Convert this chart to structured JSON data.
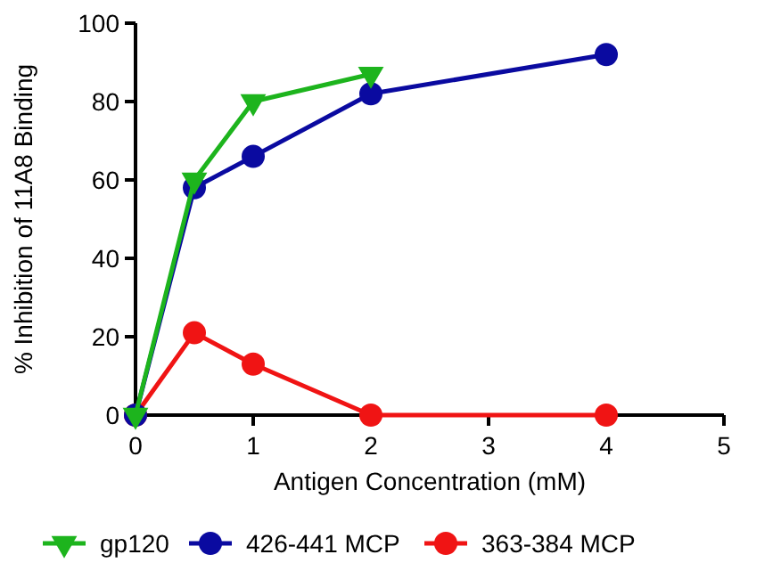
{
  "chart_data": {
    "type": "line",
    "xlabel": "Antigen Concentration (mM)",
    "ylabel": "% Inhibition of 11A8 Binding",
    "xlim": [
      0,
      5
    ],
    "xticks": [
      0,
      1,
      2,
      3,
      4,
      5
    ],
    "ylim": [
      0,
      100
    ],
    "yticks": [
      0,
      20,
      40,
      60,
      80,
      100
    ],
    "grid": false,
    "legend": "bottom",
    "line_style": "solid",
    "series": [
      {
        "name": "gp120",
        "color": "#1db41d",
        "marker": "triangle",
        "x": [
          0,
          0.5,
          1,
          2
        ],
        "values": [
          0,
          60,
          80,
          87
        ]
      },
      {
        "name": "426-441 MCP",
        "color": "#0a0aa0",
        "marker": "circle",
        "x": [
          0,
          0.5,
          1,
          2,
          4
        ],
        "values": [
          0,
          58,
          66,
          82,
          92
        ]
      },
      {
        "name": "363-384 MCP",
        "color": "#f01414",
        "marker": "circle",
        "x": [
          0,
          0.5,
          1,
          2,
          4
        ],
        "values": [
          0,
          21,
          13,
          0,
          0
        ]
      }
    ]
  }
}
